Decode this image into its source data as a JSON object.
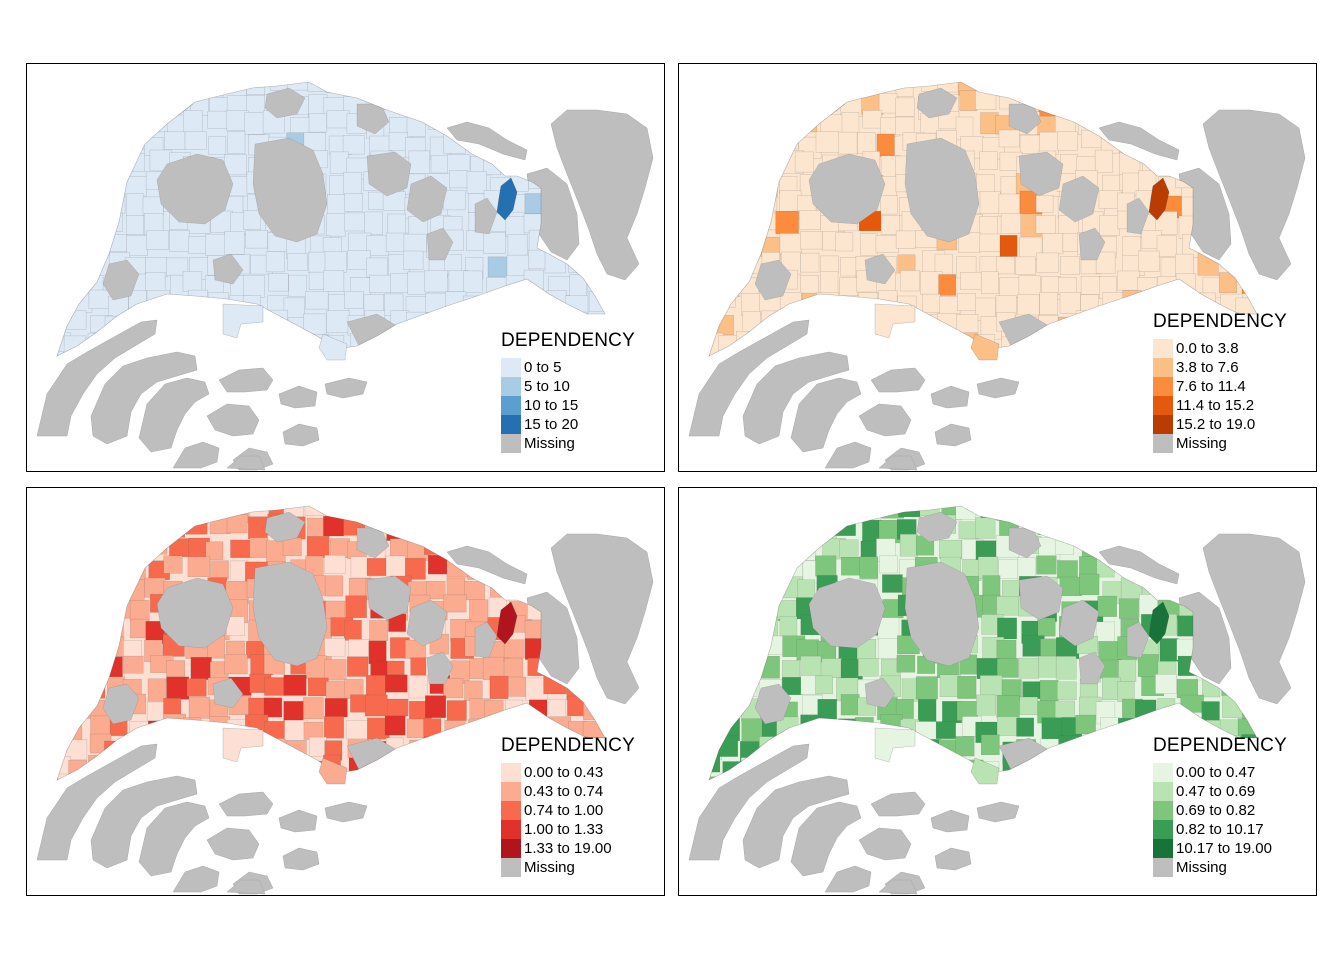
{
  "missing_color": "#bebebe",
  "panels": [
    {
      "palette_name": "Blues",
      "legend": {
        "title": "DEPENDENCY",
        "items": [
          {
            "label": "0 to 5",
            "color": "#dee9f6"
          },
          {
            "label": "5 to 10",
            "color": "#a9cce4"
          },
          {
            "label": "10 to 15",
            "color": "#5b9ecf"
          },
          {
            "label": "15 to 20",
            "color": "#2470b1"
          },
          {
            "label": "Missing",
            "color": "#bebebe"
          }
        ]
      },
      "highlight_class": 3
    },
    {
      "palette_name": "Oranges",
      "legend": {
        "title": "DEPENDENCY",
        "items": [
          {
            "label": "0.0 to 3.8",
            "color": "#fde6cf"
          },
          {
            "label": "3.8 to 7.6",
            "color": "#fcbf86"
          },
          {
            "label": "7.6 to 11.4",
            "color": "#fb8c3e"
          },
          {
            "label": "11.4 to 15.2",
            "color": "#e5590c"
          },
          {
            "label": "15.2 to 19.0",
            "color": "#b93d03"
          },
          {
            "label": "Missing",
            "color": "#bebebe"
          }
        ]
      },
      "highlight_class": 4
    },
    {
      "palette_name": "Reds",
      "legend": {
        "title": "DEPENDENCY",
        "items": [
          {
            "label": "0.00 to 0.43",
            "color": "#fde0d3"
          },
          {
            "label": "0.43 to 0.74",
            "color": "#fbab8f"
          },
          {
            "label": "0.74 to 1.00",
            "color": "#f76a4d"
          },
          {
            "label": "1.00 to 1.33",
            "color": "#e0322b"
          },
          {
            "label": "1.33 to 19.00",
            "color": "#b0151d"
          },
          {
            "label": "Missing",
            "color": "#bebebe"
          }
        ]
      },
      "highlight_class": 4
    },
    {
      "palette_name": "Greens",
      "legend": {
        "title": "DEPENDENCY",
        "items": [
          {
            "label": "0.00 to 0.47",
            "color": "#e6f5e1"
          },
          {
            "label": "0.47 to 0.69",
            "color": "#bae3b3"
          },
          {
            "label": "0.69 to 0.82",
            "color": "#7dc67c"
          },
          {
            "label": "0.82 to 10.17",
            "color": "#3a9c55"
          },
          {
            "label": "10.17 to 19.00",
            "color": "#18733a"
          },
          {
            "label": "Missing",
            "color": "#bebebe"
          }
        ]
      },
      "highlight_class": 4
    }
  ]
}
